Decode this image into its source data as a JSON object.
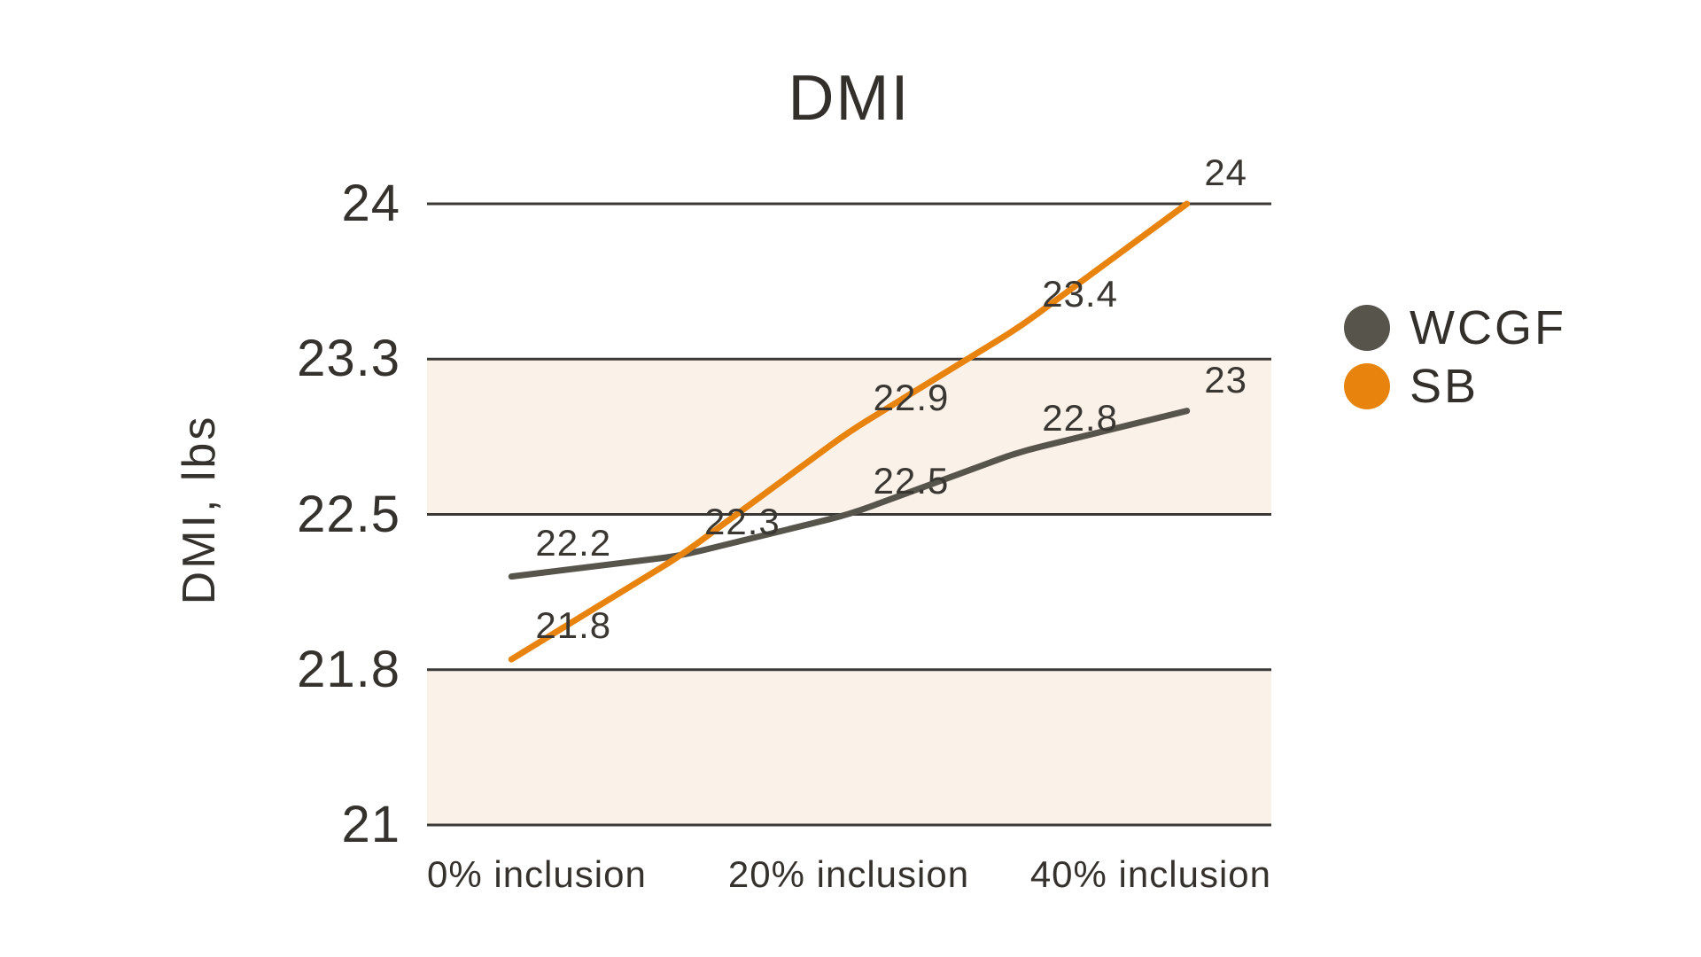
{
  "page": {
    "background_color": "#ffffff"
  },
  "chart": {
    "title": "DMI",
    "y_axis_title": "DMI, lbs"
  },
  "chart_data": {
    "type": "line",
    "title": "DMI",
    "xlabel": "",
    "ylabel": "DMI, lbs",
    "ylim": [
      21,
      24
    ],
    "grid": "horizontal",
    "legend_position": "right",
    "x_points_count": 5,
    "x_tick_labels": [
      "0% inclusion",
      "20% inclusion",
      "40% inclusion"
    ],
    "x_labeled_point_indices": [
      0,
      2,
      4
    ],
    "y_ticks": [
      {
        "value": 24.0,
        "label": "24"
      },
      {
        "value": 23.25,
        "label": "23.3"
      },
      {
        "value": 22.5,
        "label": "22.5"
      },
      {
        "value": 21.75,
        "label": "21.8"
      },
      {
        "value": 21.0,
        "label": "21"
      }
    ],
    "shaded_rows": [
      1,
      3
    ],
    "series": [
      {
        "name": "WCGF",
        "color": "#57544c",
        "values": [
          22.2,
          22.3,
          22.5,
          22.8,
          23.0
        ],
        "point_labels": [
          "22.2",
          "22.3",
          "22.5",
          "22.8",
          "23"
        ]
      },
      {
        "name": "SB",
        "color": "#e8830d",
        "values": [
          21.8,
          22.3,
          22.9,
          23.4,
          24.0
        ],
        "point_labels": [
          "21.8",
          "",
          "22.9",
          "23.4",
          "24"
        ]
      }
    ],
    "colors": {
      "band_fill": "#faf1e8",
      "gridline": "#3b3936",
      "text": "#35322e"
    }
  }
}
